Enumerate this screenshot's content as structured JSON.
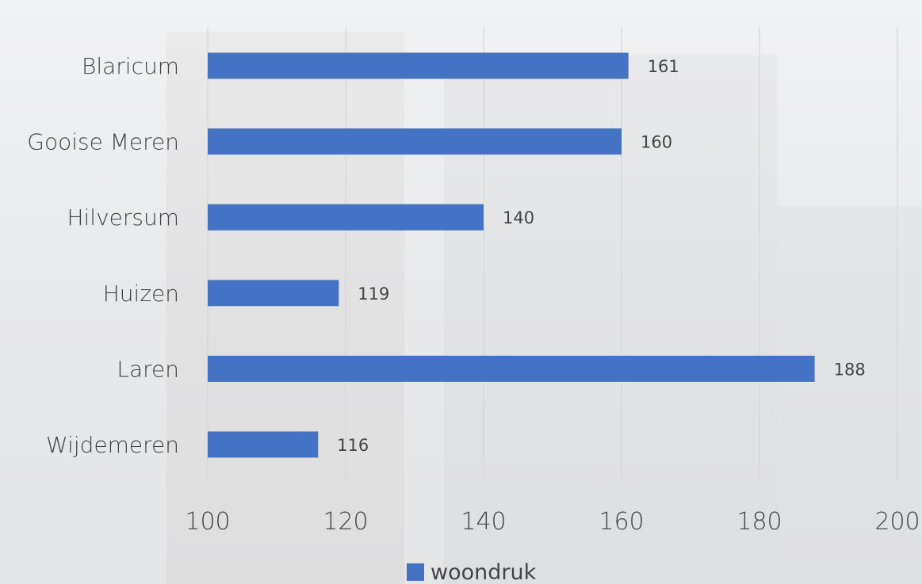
{
  "chart_data": {
    "type": "bar",
    "orientation": "horizontal",
    "categories": [
      "Blaricum",
      "Gooise Meren",
      "Hilversum",
      "Huizen",
      "Laren",
      "Wijdemeren"
    ],
    "series": [
      {
        "name": "woondruk",
        "values": [
          161,
          160,
          140,
          119,
          188,
          116
        ],
        "color": "#4472c4"
      }
    ],
    "xlim": [
      100,
      200
    ],
    "xticks": [
      "100",
      "120",
      "140",
      "160",
      "180",
      "200"
    ],
    "grid": "vertical",
    "legend": "bottom-center",
    "data_labels": true
  }
}
